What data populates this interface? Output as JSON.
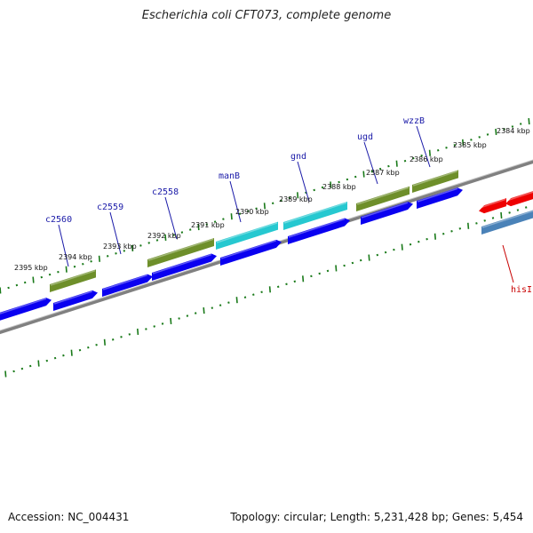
{
  "title": "Escherichia coli CFT073, complete genome",
  "footer": {
    "accession": "Accession: NC_004431",
    "summary": "Topology: circular; Length: 5,231,428 bp; Genes: 5,454"
  },
  "colors": {
    "backbone": "#808080",
    "ticks": "#1a7a1a",
    "gene_forward": "#0a00f0",
    "gene_olive": "#6e8f2a",
    "gene_cyan": "#26c8d0",
    "gene_red": "#ee0000",
    "gene_steel": "#4a82b8",
    "label_blue": "#1a1aa8",
    "label_red": "#c80000"
  },
  "scale_labels": [
    "2384 kbp",
    "2385 kbp",
    "2386 kbp",
    "2387 kbp",
    "2388 kbp",
    "2389 kbp",
    "2390 kbp",
    "2391 kbp",
    "2392 kbp",
    "2393 kbp",
    "2394 kbp",
    "2395 kbp"
  ],
  "gene_labels": [
    {
      "name": "wzzB",
      "strand": "forward"
    },
    {
      "name": "ugd",
      "strand": "forward"
    },
    {
      "name": "gnd",
      "strand": "forward"
    },
    {
      "name": "manB",
      "strand": "forward"
    },
    {
      "name": "c2558",
      "strand": "forward"
    },
    {
      "name": "c2559",
      "strand": "forward"
    },
    {
      "name": "c2560",
      "strand": "forward"
    },
    {
      "name": "hisI",
      "strand": "reverse"
    }
  ]
}
